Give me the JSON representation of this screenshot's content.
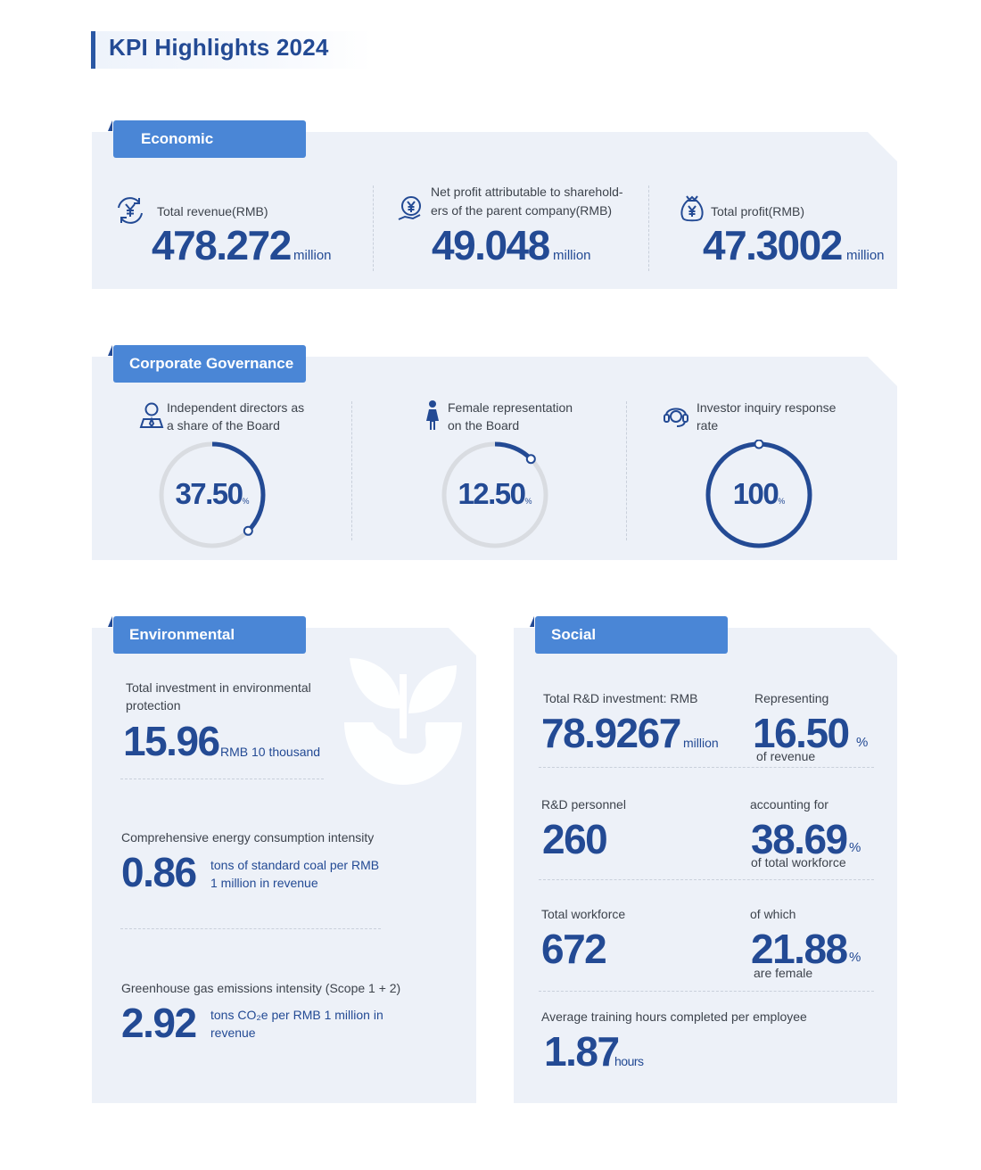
{
  "page_title": "KPI Highlights 2024",
  "colors": {
    "primary": "#234a94",
    "tab": "#4a86d6",
    "panel": "#edf1f8",
    "ring_track": "#d9dce1"
  },
  "economic": {
    "tab": "Economic",
    "items": [
      {
        "icon": "yuan-cycle-icon",
        "label": "Total revenue(RMB)",
        "value": "478.272",
        "unit": "million"
      },
      {
        "icon": "yuan-hand-icon",
        "label_line1": "Net profit attributable to sharehold-",
        "label_line2": "ers of the parent company(RMB)",
        "value": "49.048",
        "unit": "million"
      },
      {
        "icon": "money-bag-icon",
        "label": "Total profit(RMB)",
        "value": "47.3002",
        "unit": "million"
      }
    ]
  },
  "governance": {
    "tab": "Corporate Governance",
    "items": [
      {
        "icon": "director-icon",
        "label_line1": "Independent directors as",
        "label_line2": "a share of the Board",
        "value": "37.50",
        "unit": "%",
        "percent": 37.5
      },
      {
        "icon": "female-icon",
        "label_line1": "Female representation",
        "label_line2": "on the Board",
        "value": "12.50",
        "unit": "%",
        "percent": 12.5
      },
      {
        "icon": "headset-icon",
        "label_line1": "Investor inquiry response",
        "label_line2": "rate",
        "value": "100",
        "unit": "%",
        "percent": 100
      }
    ]
  },
  "environmental": {
    "tab": "Environmental",
    "investment": {
      "label_line1": "Total investment in environmental",
      "label_line2": "protection",
      "value": "15.96",
      "unit": "RMB 10 thousand"
    },
    "energy": {
      "label": "Comprehensive energy consumption intensity",
      "value": "0.86",
      "unit_line1": "tons of standard coal per RMB",
      "unit_line2": "1 million in revenue"
    },
    "ghg": {
      "label": "Greenhouse gas emissions intensity (Scope 1 + 2)",
      "value": "2.92",
      "unit_line1": "tons CO₂e per RMB 1 million in",
      "unit_line2": "revenue"
    }
  },
  "social": {
    "tab": "Social",
    "rd_investment": {
      "label": "Total R&D investment: RMB",
      "value": "78.9267",
      "unit": "million"
    },
    "rd_share": {
      "label": "Representing",
      "value": "16.50",
      "unit": "%",
      "sub": "of revenue"
    },
    "rd_personnel": {
      "label": "R&D personnel",
      "value": "260"
    },
    "rd_personnel_share": {
      "label": "accounting for",
      "value": "38.69",
      "unit": "%",
      "sub": "of total workforce"
    },
    "workforce": {
      "label": "Total workforce",
      "value": "672"
    },
    "female_share": {
      "label": "of which",
      "value": "21.88",
      "unit": "%",
      "sub": "are female"
    },
    "training": {
      "label": "Average training hours completed per employee",
      "value": "1.87",
      "unit": "hours"
    }
  }
}
